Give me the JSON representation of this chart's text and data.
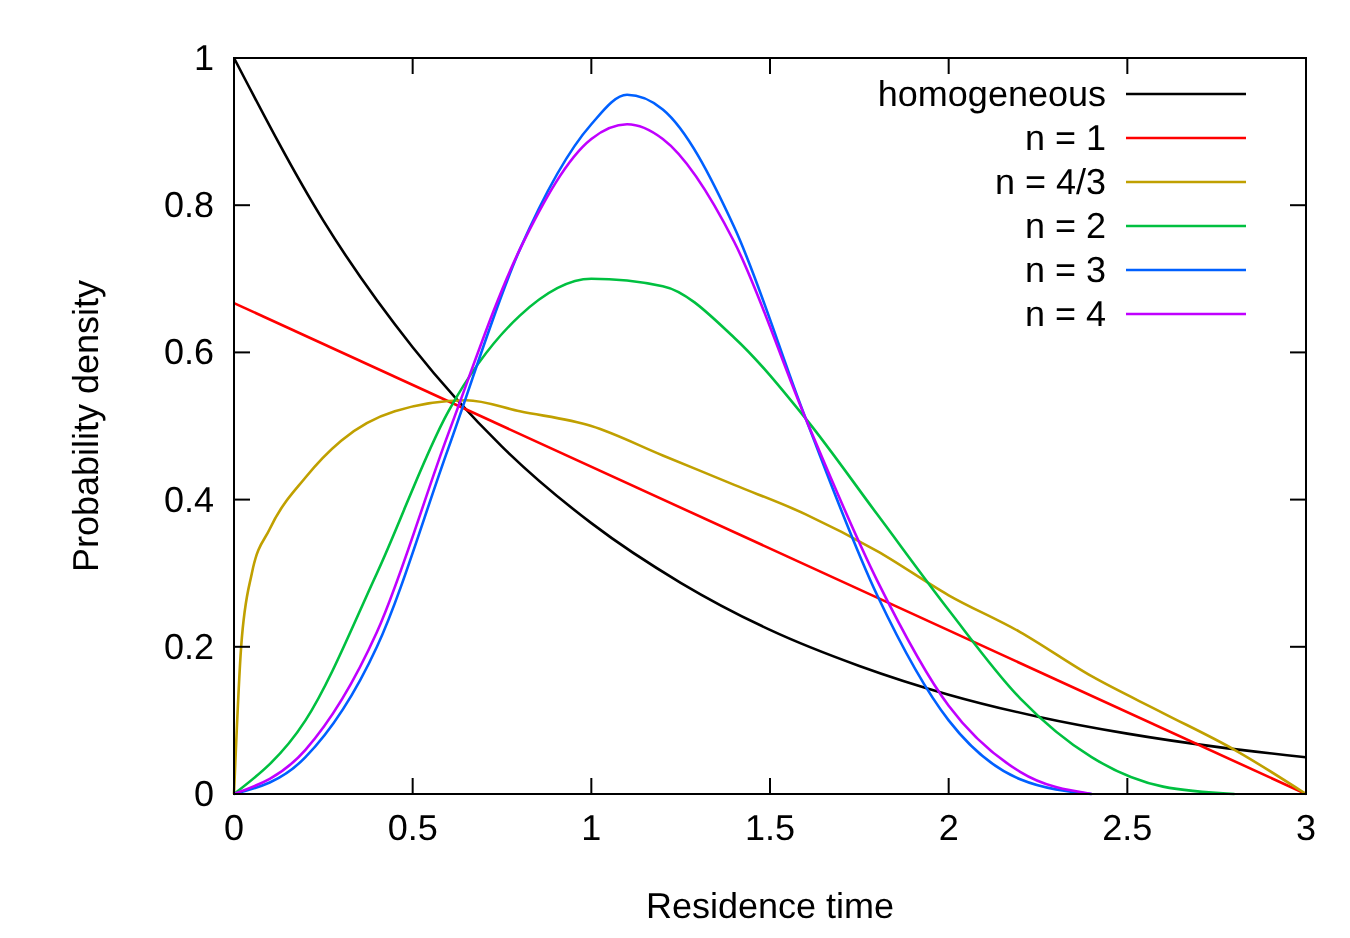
{
  "chart_data": {
    "type": "line",
    "xlabel": "Residence time",
    "ylabel": "Probability density",
    "xlim": [
      0,
      3
    ],
    "ylim": [
      0,
      1
    ],
    "xticks": [
      0,
      0.5,
      1,
      1.5,
      2,
      2.5,
      3
    ],
    "yticks": [
      0,
      0.2,
      0.4,
      0.6,
      0.8,
      1
    ],
    "legend": "top right",
    "grid": false,
    "line_style": "solid",
    "series": [
      {
        "name": "homogeneous",
        "color": "#000000",
        "x": [
          0,
          0.25,
          0.5,
          0.75,
          1,
          1.25,
          1.5,
          1.75,
          2,
          2.25,
          2.5,
          2.75,
          3
        ],
        "values": [
          1,
          0.779,
          0.607,
          0.472,
          0.368,
          0.287,
          0.223,
          0.174,
          0.135,
          0.105,
          0.082,
          0.064,
          0.05
        ]
      },
      {
        "name": "n = 1",
        "color": "#ff0000",
        "x": [
          0,
          3
        ],
        "values": [
          0.667,
          0
        ]
      },
      {
        "name": "n = 4/3",
        "color": "#c0a000",
        "x": [
          0,
          0.02,
          0.05,
          0.1,
          0.2,
          0.3,
          0.45,
          0.65,
          0.8,
          1,
          1.2,
          1.4,
          1.6,
          1.8,
          2,
          2.2,
          2.4,
          2.6,
          2.8,
          3
        ],
        "values": [
          0,
          0.2,
          0.3,
          0.36,
          0.43,
          0.48,
          0.52,
          0.535,
          0.52,
          0.5,
          0.46,
          0.42,
          0.38,
          0.33,
          0.27,
          0.22,
          0.16,
          0.11,
          0.06,
          0
        ]
      },
      {
        "name": "n = 2",
        "color": "#00c040",
        "x": [
          0,
          0.2,
          0.4,
          0.6,
          0.8,
          1,
          1.2,
          1.4,
          1.6,
          1.8,
          2,
          2.2,
          2.4,
          2.6,
          2.8
        ],
        "values": [
          0,
          0.1,
          0.3,
          0.52,
          0.65,
          0.7,
          0.69,
          0.62,
          0.51,
          0.38,
          0.25,
          0.13,
          0.05,
          0.01,
          0
        ]
      },
      {
        "name": "n = 3",
        "color": "#0060ff",
        "x": [
          0,
          0.2,
          0.4,
          0.6,
          0.8,
          1,
          1.1,
          1.2,
          1.4,
          1.6,
          1.8,
          2,
          2.2,
          2.4
        ],
        "values": [
          0,
          0.05,
          0.2,
          0.47,
          0.74,
          0.91,
          0.95,
          0.93,
          0.77,
          0.51,
          0.27,
          0.1,
          0.02,
          0
        ]
      },
      {
        "name": "n = 4",
        "color": "#c000ff",
        "x": [
          0,
          0.2,
          0.4,
          0.6,
          0.8,
          1,
          1.1,
          1.2,
          1.4,
          1.6,
          1.8,
          2,
          2.2,
          2.4
        ],
        "values": [
          0,
          0.06,
          0.22,
          0.49,
          0.74,
          0.89,
          0.91,
          0.89,
          0.75,
          0.51,
          0.29,
          0.12,
          0.03,
          0
        ]
      }
    ]
  }
}
